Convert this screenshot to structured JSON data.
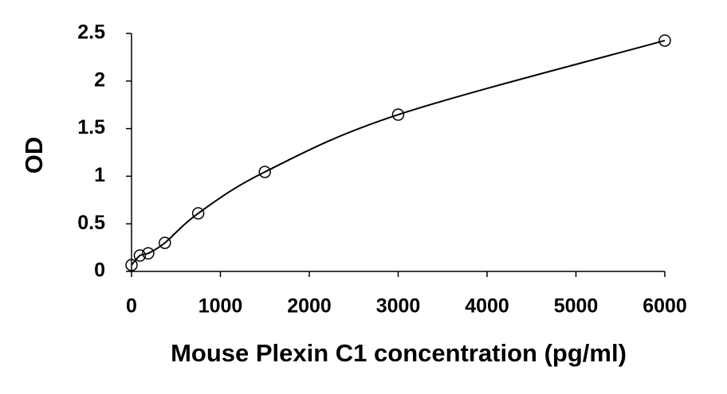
{
  "chart_data": {
    "type": "scatter",
    "x_label": "Mouse Plexin C1 concentration (pg/ml)",
    "y_label": "OD",
    "series": [
      {
        "x": [
          0,
          93.75,
          187.5,
          375,
          750,
          1500,
          3000,
          6000
        ],
        "values": [
          0.067,
          0.167,
          0.19,
          0.3,
          0.61,
          1.045,
          1.647,
          2.425
        ],
        "color": "#000000"
      }
    ],
    "fit_curve": true,
    "xlim": [
      0,
      6000
    ],
    "xticks": [
      0,
      1000,
      2000,
      3000,
      4000,
      5000,
      6000
    ],
    "ylim": [
      0,
      2.5
    ],
    "yticks": [
      0,
      0.5,
      1,
      1.5,
      2,
      2.5
    ],
    "grid": false
  }
}
